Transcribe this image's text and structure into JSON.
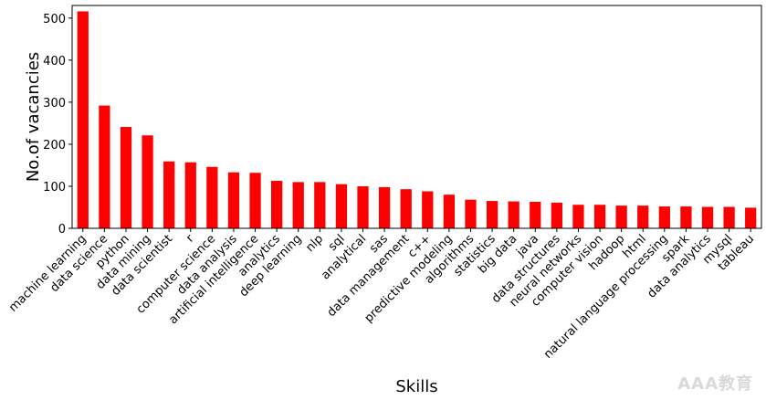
{
  "chart_data": {
    "type": "bar",
    "title": "",
    "xlabel": "Skills",
    "ylabel": "No.of vacancies",
    "ylim": [
      0,
      530
    ],
    "yticks": [
      0,
      100,
      200,
      300,
      400,
      500
    ],
    "bar_color": "#ff0000",
    "grid": false,
    "categories": [
      "machine learning",
      "data science",
      "python",
      "data mining",
      "data scientist",
      "r",
      "computer science",
      "data analysis",
      "artificial intelligence",
      "analytics",
      "deep learning",
      "nlp",
      "sql",
      "analytical",
      "sas",
      "data management",
      "c++",
      "predictive modeling",
      "algorithms",
      "statistics",
      "big data",
      "java",
      "data structures",
      "neural networks",
      "computer vision",
      "hadoop",
      "html",
      "natural language processing",
      "spark",
      "data analytics",
      "mysql",
      "tableau"
    ],
    "values": [
      516,
      292,
      241,
      221,
      159,
      157,
      146,
      133,
      132,
      113,
      110,
      110,
      105,
      100,
      98,
      93,
      88,
      80,
      68,
      65,
      64,
      63,
      61,
      56,
      56,
      54,
      54,
      52,
      52,
      51,
      51,
      49
    ]
  },
  "watermark": "AAA教育"
}
